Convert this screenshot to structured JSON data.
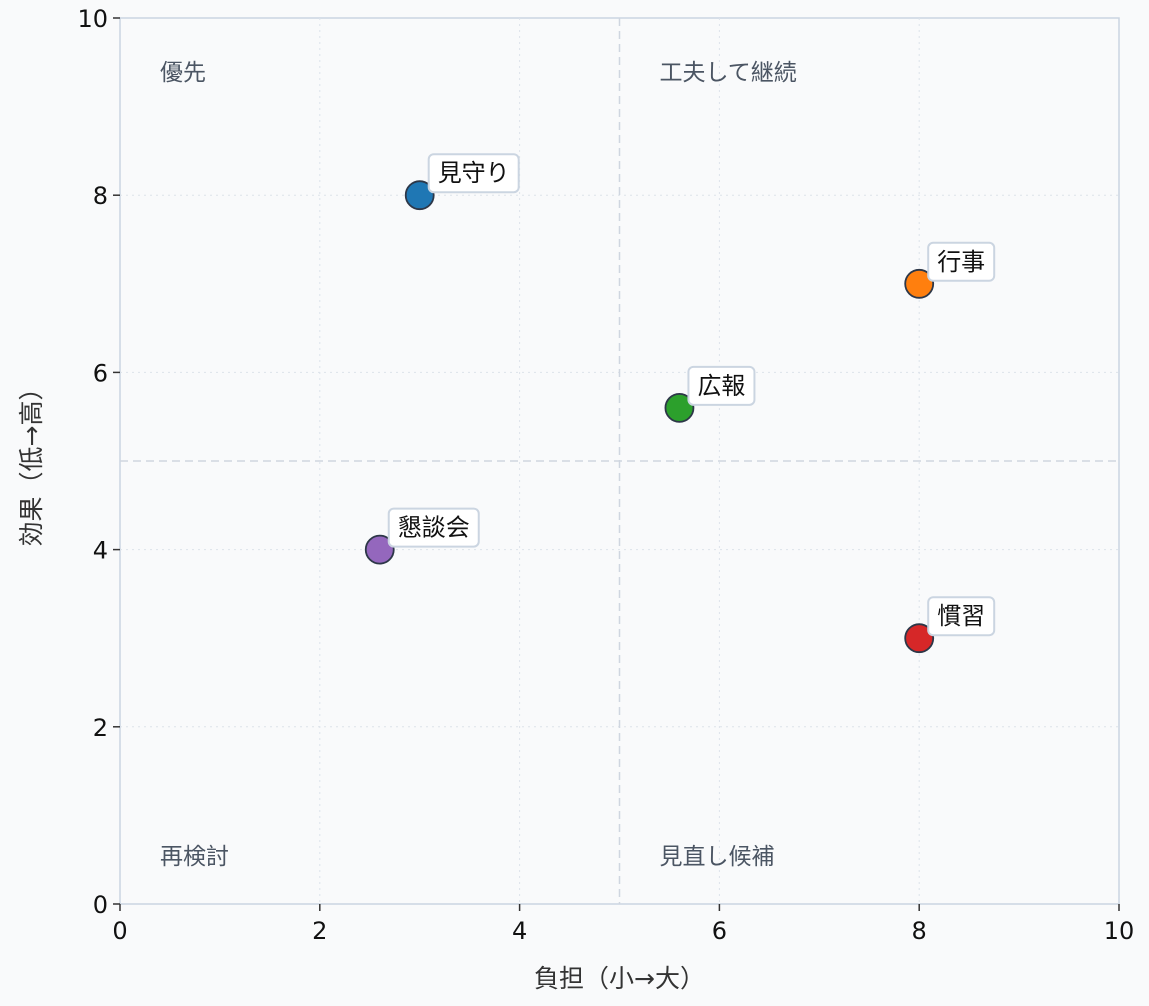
{
  "chart_data": {
    "type": "scatter",
    "xlabel": "負担（小→大）",
    "ylabel": "効果（低→高）",
    "xlim": [
      0,
      10
    ],
    "ylim": [
      0,
      10
    ],
    "xticks": [
      "0",
      "2",
      "4",
      "6",
      "8",
      "10"
    ],
    "yticks": [
      "0",
      "2",
      "4",
      "6",
      "8",
      "10"
    ],
    "grid": true,
    "divider": {
      "x": 5,
      "y": 5
    },
    "quadrants": [
      {
        "label": "優先",
        "position": "top-left"
      },
      {
        "label": "工夫して継続",
        "position": "top-right"
      },
      {
        "label": "再検討",
        "position": "bottom-left"
      },
      {
        "label": "見直し候補",
        "position": "bottom-right"
      }
    ],
    "points": [
      {
        "label": "見守り",
        "x": 3.0,
        "y": 8.0,
        "color": "#1f77b4"
      },
      {
        "label": "行事",
        "x": 8.0,
        "y": 7.0,
        "color": "#ff7f0e"
      },
      {
        "label": "広報",
        "x": 5.6,
        "y": 5.6,
        "color": "#2ca02c"
      },
      {
        "label": "懇談会",
        "x": 2.6,
        "y": 4.0,
        "color": "#9467bd"
      },
      {
        "label": "慣習",
        "x": 8.0,
        "y": 3.0,
        "color": "#d62728"
      }
    ]
  }
}
